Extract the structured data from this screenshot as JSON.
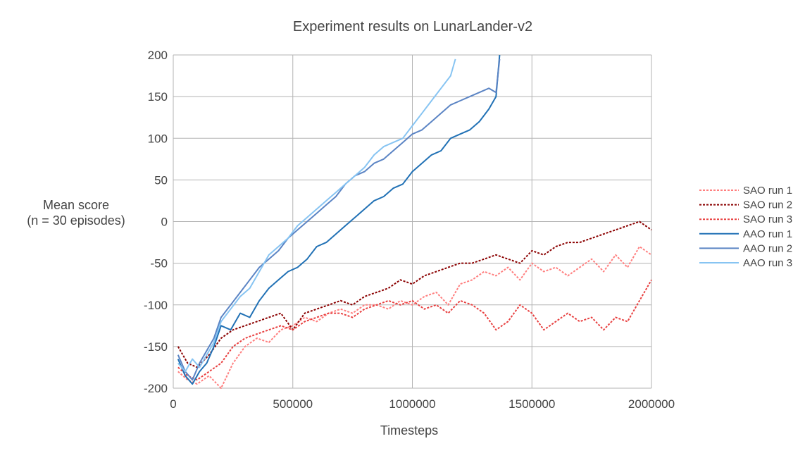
{
  "chart_data": {
    "type": "line",
    "title": "Experiment results on LunarLander-v2",
    "xlabel": "Timesteps",
    "ylabel_lines": [
      "Mean score",
      "(n = 30 episodes)"
    ],
    "xlim": [
      0,
      2000000
    ],
    "ylim": [
      -200,
      200
    ],
    "x_ticks": [
      0,
      500000,
      1000000,
      1500000,
      2000000
    ],
    "y_ticks": [
      -200,
      -150,
      -100,
      -50,
      0,
      50,
      100,
      150,
      200
    ],
    "grid": true,
    "legend_position": "right",
    "series": [
      {
        "name": "SAO run 1",
        "color": "#ff7f7f",
        "dash": "dotted",
        "x": [
          20000,
          60000,
          100000,
          150000,
          200000,
          250000,
          300000,
          350000,
          400000,
          450000,
          500000,
          550000,
          600000,
          650000,
          700000,
          750000,
          800000,
          850000,
          900000,
          950000,
          1000000,
          1050000,
          1100000,
          1150000,
          1200000,
          1250000,
          1300000,
          1350000,
          1400000,
          1450000,
          1500000,
          1550000,
          1600000,
          1650000,
          1700000,
          1750000,
          1800000,
          1850000,
          1900000,
          1950000,
          2000000
        ],
        "y": [
          -180,
          -190,
          -195,
          -185,
          -200,
          -170,
          -150,
          -140,
          -145,
          -130,
          -125,
          -115,
          -120,
          -110,
          -105,
          -110,
          -100,
          -100,
          -105,
          -95,
          -100,
          -90,
          -85,
          -100,
          -75,
          -70,
          -60,
          -65,
          -55,
          -70,
          -50,
          -60,
          -55,
          -65,
          -55,
          -45,
          -60,
          -40,
          -55,
          -30,
          -40
        ]
      },
      {
        "name": "SAO run 2",
        "color": "#8b0000",
        "dash": "dotted",
        "x": [
          20000,
          60000,
          100000,
          150000,
          200000,
          250000,
          300000,
          350000,
          400000,
          450000,
          500000,
          550000,
          600000,
          650000,
          700000,
          750000,
          800000,
          850000,
          900000,
          950000,
          1000000,
          1050000,
          1100000,
          1150000,
          1200000,
          1250000,
          1300000,
          1350000,
          1400000,
          1450000,
          1500000,
          1550000,
          1600000,
          1650000,
          1700000,
          1750000,
          1800000,
          1850000,
          1900000,
          1950000,
          2000000
        ],
        "y": [
          -150,
          -170,
          -175,
          -160,
          -140,
          -130,
          -125,
          -120,
          -115,
          -110,
          -130,
          -110,
          -105,
          -100,
          -95,
          -100,
          -90,
          -85,
          -80,
          -70,
          -75,
          -65,
          -60,
          -55,
          -50,
          -50,
          -45,
          -40,
          -45,
          -50,
          -35,
          -40,
          -30,
          -25,
          -25,
          -20,
          -15,
          -10,
          -5,
          0,
          -10
        ]
      },
      {
        "name": "SAO run 3",
        "color": "#e84040",
        "dash": "dotted",
        "x": [
          20000,
          60000,
          100000,
          150000,
          200000,
          250000,
          300000,
          350000,
          400000,
          450000,
          500000,
          550000,
          600000,
          650000,
          700000,
          750000,
          800000,
          850000,
          900000,
          950000,
          1000000,
          1050000,
          1100000,
          1150000,
          1200000,
          1250000,
          1300000,
          1350000,
          1400000,
          1450000,
          1500000,
          1550000,
          1600000,
          1650000,
          1700000,
          1750000,
          1800000,
          1850000,
          1900000,
          1950000,
          2000000
        ],
        "y": [
          -175,
          -185,
          -190,
          -180,
          -170,
          -150,
          -140,
          -135,
          -130,
          -125,
          -130,
          -120,
          -115,
          -110,
          -110,
          -115,
          -105,
          -100,
          -95,
          -100,
          -95,
          -105,
          -100,
          -110,
          -95,
          -100,
          -110,
          -130,
          -120,
          -100,
          -110,
          -130,
          -120,
          -110,
          -120,
          -115,
          -130,
          -115,
          -120,
          -95,
          -70
        ]
      },
      {
        "name": "AAO run 1",
        "color": "#2171b5",
        "dash": "solid",
        "x": [
          20000,
          50000,
          80000,
          110000,
          140000,
          170000,
          200000,
          240000,
          280000,
          320000,
          360000,
          400000,
          440000,
          480000,
          520000,
          560000,
          600000,
          640000,
          680000,
          720000,
          760000,
          800000,
          840000,
          880000,
          920000,
          960000,
          1000000,
          1040000,
          1080000,
          1120000,
          1160000,
          1200000,
          1240000,
          1280000,
          1320000,
          1350000,
          1365000
        ],
        "y": [
          -165,
          -185,
          -195,
          -180,
          -170,
          -150,
          -125,
          -130,
          -110,
          -115,
          -95,
          -80,
          -70,
          -60,
          -55,
          -45,
          -30,
          -25,
          -15,
          -5,
          5,
          15,
          25,
          30,
          40,
          45,
          60,
          70,
          80,
          85,
          100,
          105,
          110,
          120,
          135,
          150,
          200
        ]
      },
      {
        "name": "AAO run 2",
        "color": "#5b84c4",
        "dash": "solid",
        "x": [
          20000,
          50000,
          80000,
          110000,
          140000,
          170000,
          200000,
          240000,
          280000,
          320000,
          360000,
          400000,
          440000,
          480000,
          520000,
          560000,
          600000,
          640000,
          680000,
          720000,
          760000,
          800000,
          840000,
          880000,
          920000,
          960000,
          1000000,
          1040000,
          1080000,
          1120000,
          1160000,
          1200000,
          1240000,
          1280000,
          1320000,
          1350000,
          1365000
        ],
        "y": [
          -160,
          -180,
          -190,
          -170,
          -155,
          -140,
          -115,
          -100,
          -85,
          -70,
          -55,
          -45,
          -35,
          -20,
          -10,
          0,
          10,
          20,
          30,
          45,
          55,
          60,
          70,
          75,
          85,
          95,
          105,
          110,
          120,
          130,
          140,
          145,
          150,
          155,
          160,
          155,
          195
        ]
      },
      {
        "name": "AAO run 3",
        "color": "#87c4f2",
        "dash": "solid",
        "x": [
          20000,
          50000,
          80000,
          110000,
          140000,
          170000,
          200000,
          240000,
          280000,
          320000,
          360000,
          400000,
          440000,
          480000,
          520000,
          560000,
          600000,
          640000,
          680000,
          720000,
          760000,
          800000,
          840000,
          880000,
          920000,
          960000,
          1000000,
          1040000,
          1080000,
          1120000,
          1160000,
          1180000
        ],
        "y": [
          -170,
          -180,
          -165,
          -175,
          -160,
          -145,
          -120,
          -105,
          -90,
          -80,
          -60,
          -40,
          -30,
          -20,
          -5,
          5,
          15,
          25,
          35,
          45,
          55,
          65,
          80,
          90,
          95,
          100,
          115,
          130,
          145,
          160,
          175,
          195
        ]
      }
    ]
  }
}
